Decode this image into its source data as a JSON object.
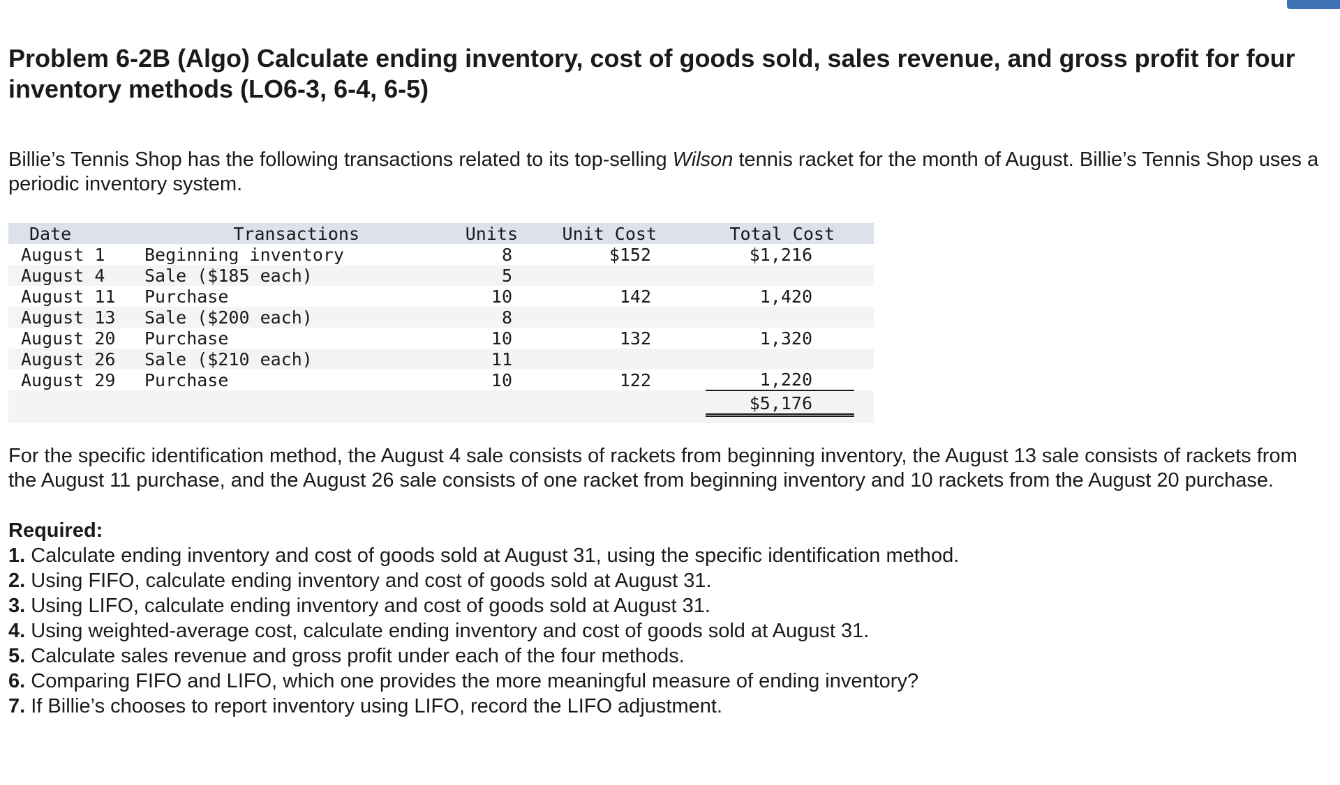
{
  "title": "Problem 6-2B (Algo) Calculate ending inventory, cost of goods sold, sales revenue, and gross profit for four inventory methods (LO6-3, 6-4, 6-5)",
  "intro": {
    "before": "Billie’s Tennis Shop has the following transactions related to its top-selling ",
    "brand": "Wilson",
    "after": " tennis racket for the month of August. Billie’s Tennis Shop uses a periodic inventory system."
  },
  "table": {
    "headers": [
      "Date",
      "Transactions",
      "Units",
      "Unit Cost",
      "Total Cost"
    ],
    "rows": [
      [
        "August 1",
        "Beginning inventory",
        "8",
        "$152",
        "$1,216"
      ],
      [
        "August 4",
        "Sale ($185 each)",
        "5",
        "",
        ""
      ],
      [
        "August 11",
        "Purchase",
        "10",
        "142",
        "1,420"
      ],
      [
        "August 13",
        "Sale ($200 each)",
        "8",
        "",
        ""
      ],
      [
        "August 20",
        "Purchase",
        "10",
        "132",
        "1,320"
      ],
      [
        "August 26",
        "Sale ($210 each)",
        "11",
        "",
        ""
      ],
      [
        "August 29",
        "Purchase",
        "10",
        "122",
        "1,220"
      ]
    ],
    "total": "$5,176"
  },
  "note": "For the specific identification method, the August 4 sale consists of rackets from beginning inventory, the August 13 sale consists of rackets from the August 11 purchase, and the August 26 sale consists of one racket from beginning inventory and 10 rackets from the August 20 purchase.",
  "required": {
    "title": "Required:",
    "items": [
      {
        "num": "1.",
        "text": " Calculate ending inventory and cost of goods sold at August 31, using the specific identification method."
      },
      {
        "num": "2.",
        "text": " Using FIFO, calculate ending inventory and cost of goods sold at August 31."
      },
      {
        "num": "3.",
        "text": " Using LIFO, calculate ending inventory and cost of goods sold at August 31."
      },
      {
        "num": "4.",
        "text": " Using weighted-average cost, calculate ending inventory and cost of goods sold at August 31."
      },
      {
        "num": "5.",
        "text": " Calculate sales revenue and gross profit under each of the four methods."
      },
      {
        "num": "6.",
        "text": " Comparing FIFO and LIFO, which one provides the more meaningful measure of ending inventory?"
      },
      {
        "num": "7.",
        "text": " If Billie’s chooses to report inventory using LIFO, record the LIFO adjustment."
      }
    ]
  }
}
